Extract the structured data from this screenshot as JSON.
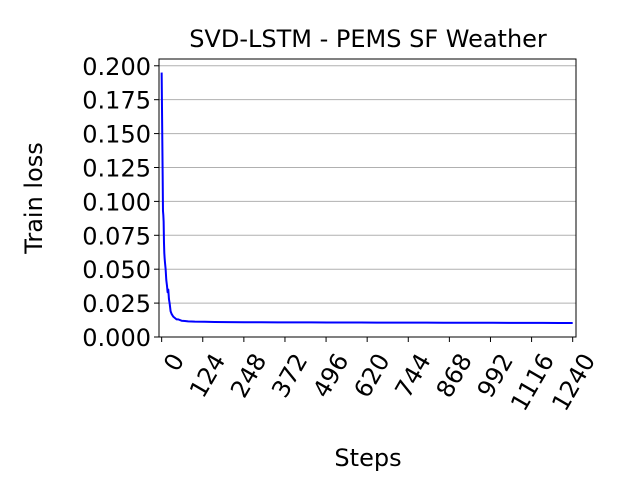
{
  "chart_data": {
    "type": "line",
    "title": "SVD-LSTM - PEMS SF Weather",
    "xlabel": "Steps",
    "ylabel": "Train loss",
    "xlim": [
      -8,
      1250
    ],
    "ylim": [
      0.0,
      0.205
    ],
    "x_ticks": [
      0,
      124,
      248,
      372,
      496,
      620,
      744,
      868,
      992,
      1116,
      1240
    ],
    "x_tick_labels": [
      "0",
      "124",
      "248",
      "372",
      "496",
      "620",
      "744",
      "868",
      "992",
      "1116",
      "1240"
    ],
    "y_ticks": [
      0.0,
      0.025,
      0.05,
      0.075,
      0.1,
      0.125,
      0.15,
      0.175,
      0.2
    ],
    "y_tick_labels": [
      "0.000",
      "0.025",
      "0.050",
      "0.075",
      "0.100",
      "0.125",
      "0.150",
      "0.175",
      "0.200"
    ],
    "x_tick_rotation_deg": 60,
    "grid": "horizontal",
    "legend": "none",
    "series": [
      {
        "color": "#0000ff",
        "x": [
          0,
          1,
          2,
          3,
          4,
          5,
          6,
          7,
          8,
          9,
          10,
          12,
          14,
          16,
          18,
          20,
          22,
          24,
          27,
          30,
          35,
          40,
          45,
          50,
          60,
          70,
          80,
          100,
          130,
          160,
          200,
          250,
          300,
          350,
          400,
          450,
          500,
          550,
          600,
          650,
          700,
          750,
          800,
          850,
          900,
          950,
          1000,
          1050,
          1100,
          1150,
          1200,
          1240
        ],
        "y": [
          0.195,
          0.17,
          0.145,
          0.12,
          0.093,
          0.09,
          0.085,
          0.07,
          0.062,
          0.058,
          0.055,
          0.05,
          0.042,
          0.038,
          0.033,
          0.035,
          0.028,
          0.025,
          0.019,
          0.017,
          0.015,
          0.014,
          0.013,
          0.013,
          0.012,
          0.0118,
          0.0115,
          0.0113,
          0.0112,
          0.0111,
          0.011,
          0.0109,
          0.0109,
          0.0108,
          0.0108,
          0.0108,
          0.0107,
          0.0107,
          0.0107,
          0.0106,
          0.0106,
          0.0106,
          0.0106,
          0.0105,
          0.0105,
          0.0105,
          0.0105,
          0.0104,
          0.0104,
          0.0104,
          0.0103,
          0.0103
        ]
      }
    ]
  }
}
